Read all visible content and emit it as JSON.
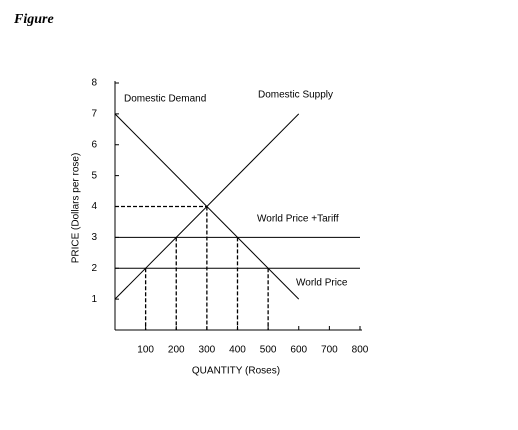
{
  "title": "Figure",
  "chart_data": {
    "type": "line",
    "x_label": "QUANTITY (Roses)",
    "y_label": "PRICE (Dollars per rose)",
    "xlim": [
      0,
      800
    ],
    "ylim": [
      0,
      8
    ],
    "xticks": [
      100,
      200,
      300,
      400,
      500,
      600,
      700,
      800
    ],
    "yticks": [
      1,
      2,
      3,
      4,
      5,
      6,
      7,
      8
    ],
    "series": [
      {
        "name": "Domestic Demand",
        "color": "#000000",
        "x": [
          0,
          600
        ],
        "values": [
          7,
          1
        ]
      },
      {
        "name": "Domestic Supply",
        "color": "#000000",
        "x": [
          0,
          600
        ],
        "values": [
          1,
          7
        ]
      },
      {
        "name": "World Price +Tariff",
        "color": "#000000",
        "x": [
          0,
          800
        ],
        "values": [
          3,
          3
        ]
      },
      {
        "name": "World Price",
        "color": "#000000",
        "x": [
          0,
          800
        ],
        "values": [
          2,
          2
        ]
      }
    ],
    "equilibrium": {
      "x": 300,
      "y": 4
    },
    "guides": [
      {
        "x": 100,
        "y": 2
      },
      {
        "x": 200,
        "y": 3
      },
      {
        "x": 400,
        "y": 3
      },
      {
        "x": 500,
        "y": 2
      }
    ]
  }
}
